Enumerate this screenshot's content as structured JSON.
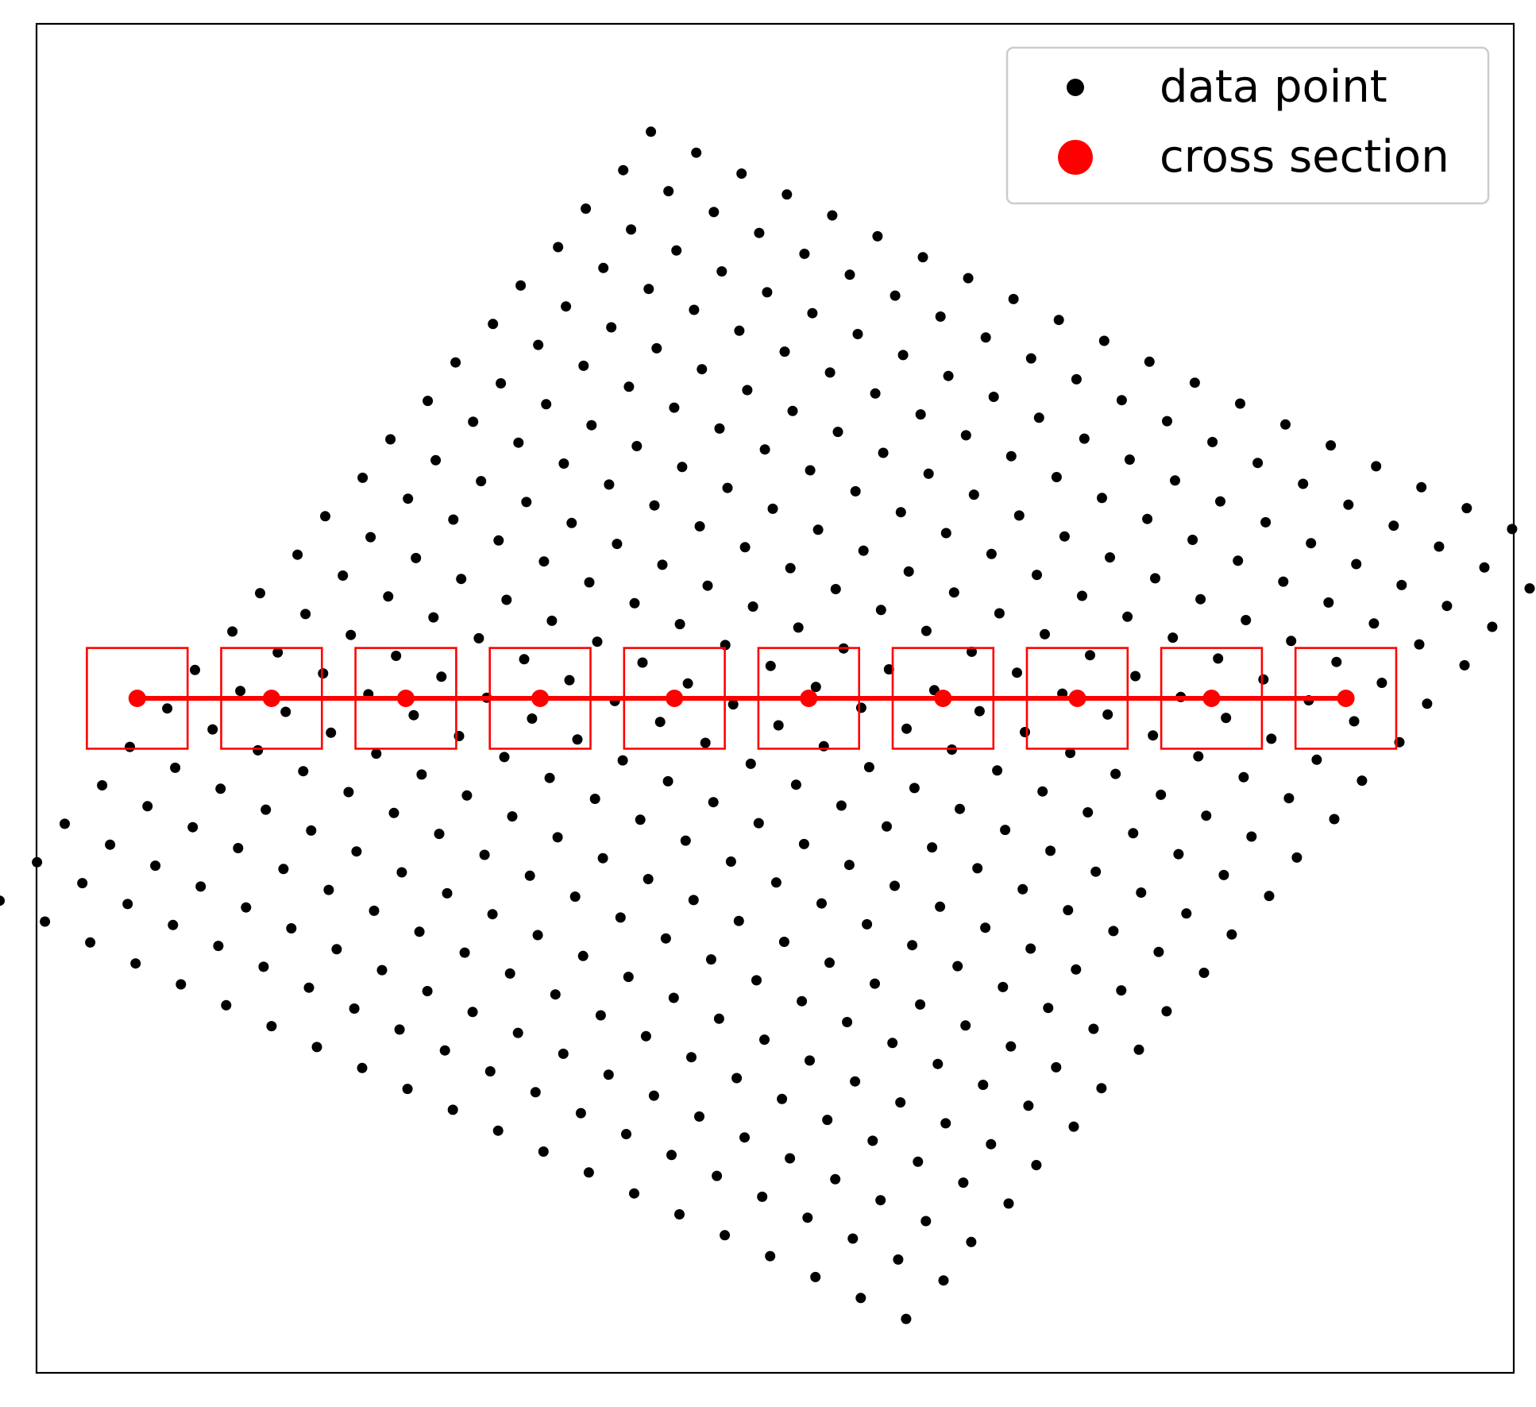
{
  "chart_data": {
    "type": "scatter",
    "title": "",
    "xlabel": "",
    "ylabel": "",
    "xlim": [
      -1.15,
      1.05
    ],
    "ylim": [
      -1.0,
      1.0
    ],
    "grid": false,
    "ticks_visible": false,
    "legend": {
      "placement": "top-right",
      "entries": [
        {
          "label": "data point",
          "color": "#000000",
          "marker": "small-dot"
        },
        {
          "label": "cross section",
          "color": "#ff0000",
          "marker": "large-dot"
        }
      ]
    },
    "series": [
      {
        "name": "data point",
        "color": "#000000",
        "lattice": {
          "rows": 21,
          "cols": 21,
          "origin": [
            -0.045,
            -0.04
          ],
          "row_step": [
            0.0485,
            0.057
          ],
          "col_step": [
            0.0675,
            -0.031
          ],
          "sub_offset": [
            0.0072,
            0.0
          ]
        }
      },
      {
        "name": "cross section",
        "color": "#ff0000",
        "x": [
          -1.0,
          -0.8,
          -0.6,
          -0.4,
          -0.2,
          0.0,
          0.2,
          0.4,
          0.6,
          0.8
        ],
        "y": [
          0,
          0,
          0,
          0,
          0,
          0,
          0,
          0,
          0,
          0
        ],
        "box_half_width": 0.075,
        "connect": true
      }
    ]
  }
}
